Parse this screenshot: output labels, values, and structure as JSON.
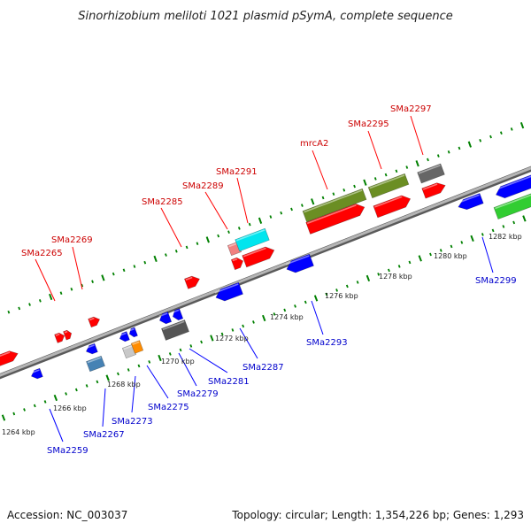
{
  "title": "Sinorhizobium meliloti 1021 plasmid pSymA, complete sequence",
  "footer": {
    "accession": "Accession: NC_003037",
    "summary": "Topology: circular; Length: 1,354,226 bp; Genes: 1,293"
  },
  "colors": {
    "forward": "#ff0000",
    "reverse": "#0000ff",
    "label_forward": "#cc0000",
    "label_reverse": "#0000cc",
    "backbone": "#8c8c8c",
    "tick": "#008000"
  },
  "axis": {
    "tick_labels": [
      "1264 kbp",
      "1266 kbp",
      "1268 kbp",
      "1270 kbp",
      "1272 kbp",
      "1274 kbp",
      "1276 kbp",
      "1278 kbp",
      "1280 kbp",
      "1282 kbp"
    ]
  },
  "forward_labels": [
    "SMa2265",
    "SMa2269",
    "SMa2285",
    "SMa2289",
    "SMa2291",
    "mrcA2",
    "SMa2295",
    "SMa2297"
  ],
  "reverse_labels": [
    "SMa2259",
    "SMa2267",
    "SMa2273",
    "SMa2275",
    "SMa2279",
    "SMa2281",
    "SMa2287",
    "SMa2293",
    "SMa2299"
  ]
}
